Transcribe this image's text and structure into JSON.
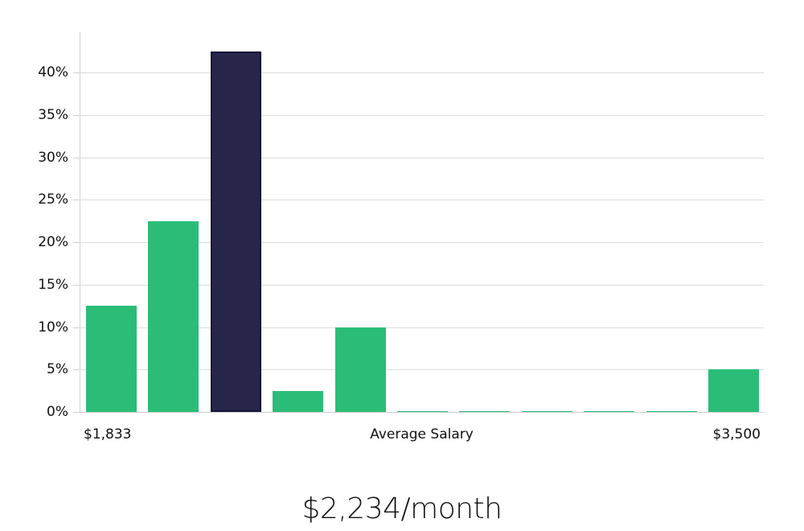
{
  "chart_data": {
    "type": "bar",
    "title": "",
    "xlabel": "Average Salary",
    "ylabel": "",
    "x_range_labels": {
      "min": "$1,833",
      "max": "$3,500"
    },
    "categories": [
      "bin1",
      "bin2",
      "bin3",
      "bin4",
      "bin5",
      "bin6",
      "bin7",
      "bin8",
      "bin9",
      "bin10",
      "bin11"
    ],
    "values": [
      12.5,
      22.5,
      42.5,
      2.5,
      10,
      0,
      0,
      0,
      0,
      0,
      5
    ],
    "highlight_index": 2,
    "ylim": [
      0,
      45
    ],
    "yticks": [
      0,
      5,
      10,
      15,
      20,
      25,
      30,
      35,
      40
    ],
    "ytick_labels": [
      "0%",
      "5%",
      "10%",
      "15%",
      "20%",
      "25%",
      "30%",
      "35%",
      "40%"
    ],
    "grid": true,
    "legend": null,
    "colors": {
      "bar": "#2bbd78",
      "highlight": "#28254a",
      "highlight_border": "#16143a"
    }
  },
  "axis": {
    "x_min_label": "$1,833",
    "x_center_label": "Average Salary",
    "x_max_label": "$3,500"
  },
  "summary": {
    "average_label": "$2,234/month"
  }
}
